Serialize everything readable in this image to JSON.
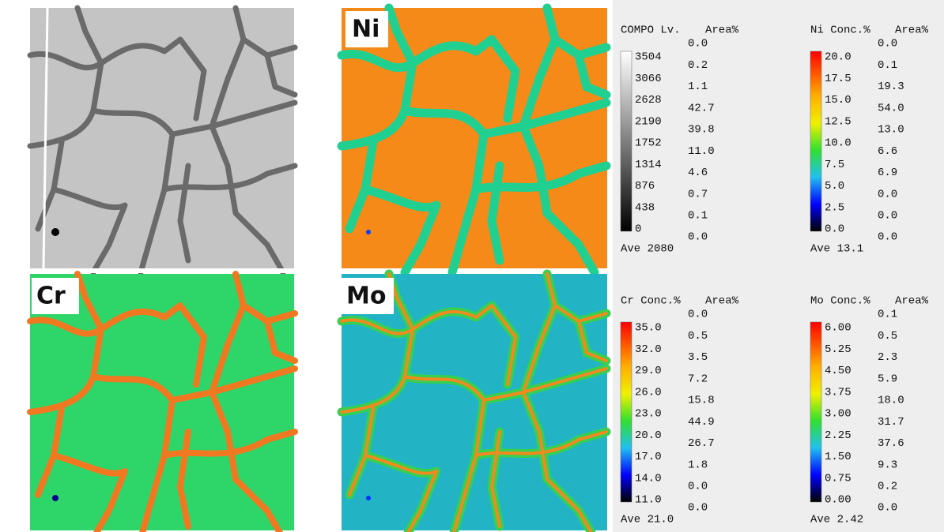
{
  "maps": [
    {
      "label": "Ni"
    },
    {
      "label": "Cr"
    },
    {
      "label": "Mo"
    }
  ],
  "legends": [
    {
      "title": "COMPO Lv.",
      "area_header": "Area%",
      "levels": [
        "3504",
        "3066",
        "2628",
        "2190",
        "1752",
        "1314",
        "876",
        "438",
        "0"
      ],
      "areas": [
        "0.0",
        "0.2",
        "1.1",
        "42.7",
        "39.8",
        "11.0",
        "4.6",
        "0.7",
        "0.1",
        "0.0"
      ],
      "ave": "Ave 2080"
    },
    {
      "title": "Ni Conc.%",
      "area_header": "Area%",
      "levels": [
        "20.0",
        "17.5",
        "15.0",
        "12.5",
        "10.0",
        "7.5",
        "5.0",
        "2.5",
        "0.0"
      ],
      "areas": [
        "0.0",
        "0.1",
        "19.3",
        "54.0",
        "13.0",
        "6.6",
        "6.9",
        "0.0",
        "0.0",
        "0.0"
      ],
      "ave": "Ave 13.1"
    },
    {
      "title": "Cr Conc.%",
      "area_header": "Area%",
      "levels": [
        "35.0",
        "32.0",
        "29.0",
        "26.0",
        "23.0",
        "20.0",
        "17.0",
        "14.0",
        "11.0"
      ],
      "areas": [
        "0.0",
        "0.5",
        "3.5",
        "7.2",
        "15.8",
        "44.9",
        "26.7",
        "1.8",
        "0.0",
        "0.0"
      ],
      "ave": "Ave 21.0"
    },
    {
      "title": "Mo Conc.%",
      "area_header": "Area%",
      "levels": [
        "6.00",
        "5.25",
        "4.50",
        "3.75",
        "3.00",
        "2.25",
        "1.50",
        "0.75",
        "0.00"
      ],
      "areas": [
        "0.1",
        "0.5",
        "2.3",
        "5.9",
        "18.0",
        "31.7",
        "37.6",
        "9.3",
        "0.2",
        "0.0"
      ],
      "ave": "Ave 2.42"
    }
  ]
}
